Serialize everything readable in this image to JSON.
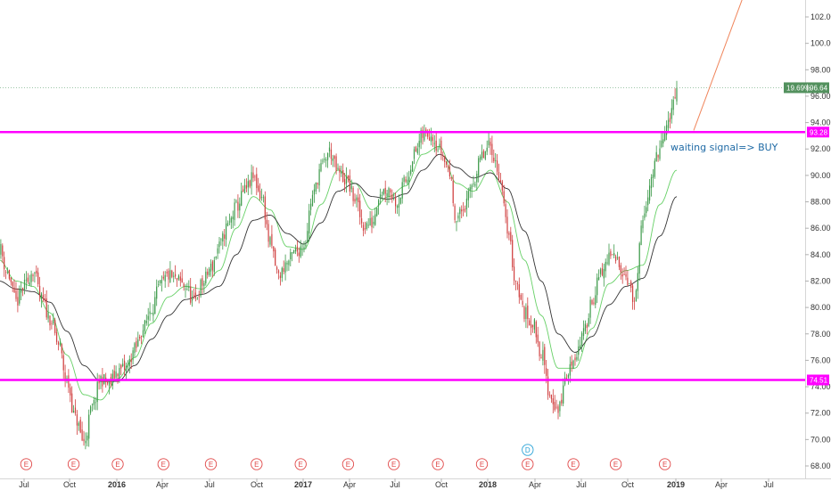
{
  "chart_data": {
    "type": "candlestick",
    "ylim": [
      67.2,
      104.0
    ],
    "y_ticks": [
      "68.00",
      "70.00",
      "72.00",
      "74.00",
      "76.00",
      "78.00",
      "80.00",
      "82.00",
      "84.00",
      "86.00",
      "88.00",
      "90.00",
      "92.00",
      "94.00",
      "96.00",
      "98.00",
      "100.00",
      "102.00"
    ],
    "x_ticks": [
      "Jul",
      "Oct",
      "2016",
      "Apr",
      "Jul",
      "Oct",
      "2017",
      "Apr",
      "Jul",
      "Oct",
      "2018",
      "Apr",
      "Jul",
      "Oct",
      "2019",
      "Apr",
      "Jul"
    ],
    "x_tick_is_year": [
      false,
      false,
      true,
      false,
      false,
      false,
      true,
      false,
      false,
      false,
      true,
      false,
      false,
      false,
      true,
      false,
      false
    ],
    "close_anchors": [
      [
        0,
        84.6
      ],
      [
        5,
        82.6
      ],
      [
        10,
        80.4
      ],
      [
        15,
        81.6
      ],
      [
        20,
        82.8
      ],
      [
        25,
        80.6
      ],
      [
        30,
        79.2
      ],
      [
        35,
        77.2
      ],
      [
        40,
        74.4
      ],
      [
        45,
        71.6
      ],
      [
        50,
        69.8
      ],
      [
        55,
        72.4
      ],
      [
        60,
        74.6
      ],
      [
        65,
        74.2
      ],
      [
        70,
        75.2
      ],
      [
        75,
        75.4
      ],
      [
        80,
        76.8
      ],
      [
        85,
        78.4
      ],
      [
        90,
        80.0
      ],
      [
        95,
        81.6
      ],
      [
        100,
        82.4
      ],
      [
        105,
        82.0
      ],
      [
        110,
        81.6
      ],
      [
        115,
        80.4
      ],
      [
        120,
        81.8
      ],
      [
        125,
        83.0
      ],
      [
        130,
        84.6
      ],
      [
        135,
        86.2
      ],
      [
        140,
        87.6
      ],
      [
        145,
        88.8
      ],
      [
        150,
        89.8
      ],
      [
        155,
        88.4
      ],
      [
        160,
        84.8
      ],
      [
        165,
        82.4
      ],
      [
        170,
        83.4
      ],
      [
        175,
        84.2
      ],
      [
        180,
        84.8
      ],
      [
        185,
        88.4
      ],
      [
        190,
        90.6
      ],
      [
        195,
        91.8
      ],
      [
        200,
        90.2
      ],
      [
        205,
        89.6
      ],
      [
        210,
        88.2
      ],
      [
        215,
        86.2
      ],
      [
        220,
        86.4
      ],
      [
        225,
        88.8
      ],
      [
        230,
        89.0
      ],
      [
        235,
        88.0
      ],
      [
        240,
        89.6
      ],
      [
        245,
        91.6
      ],
      [
        250,
        93.0
      ],
      [
        255,
        93.2
      ],
      [
        260,
        92.0
      ],
      [
        265,
        90.6
      ],
      [
        270,
        86.8
      ],
      [
        275,
        87.6
      ],
      [
        280,
        89.6
      ],
      [
        285,
        91.4
      ],
      [
        290,
        92.2
      ],
      [
        295,
        90.2
      ],
      [
        300,
        86.0
      ],
      [
        305,
        82.0
      ],
      [
        310,
        79.6
      ],
      [
        315,
        78.8
      ],
      [
        320,
        76.6
      ],
      [
        325,
        73.4
      ],
      [
        330,
        72.2
      ],
      [
        335,
        74.8
      ],
      [
        340,
        76.4
      ],
      [
        345,
        78.0
      ],
      [
        350,
        80.6
      ],
      [
        355,
        82.4
      ],
      [
        360,
        83.8
      ],
      [
        365,
        83.6
      ],
      [
        370,
        82.4
      ],
      [
        375,
        80.4
      ],
      [
        380,
        86.4
      ],
      [
        385,
        90.0
      ],
      [
        390,
        92.0
      ],
      [
        395,
        93.8
      ],
      [
        400,
        96.64
      ]
    ],
    "sma_fast_anchors": [
      [
        0,
        83.6
      ],
      [
        10,
        82.0
      ],
      [
        20,
        81.6
      ],
      [
        30,
        79.6
      ],
      [
        40,
        76.4
      ],
      [
        50,
        73.4
      ],
      [
        60,
        73.0
      ],
      [
        70,
        74.6
      ],
      [
        80,
        76.2
      ],
      [
        90,
        78.8
      ],
      [
        100,
        80.8
      ],
      [
        110,
        81.6
      ],
      [
        120,
        81.4
      ],
      [
        130,
        82.8
      ],
      [
        140,
        86.0
      ],
      [
        150,
        88.4
      ],
      [
        160,
        87.4
      ],
      [
        170,
        84.6
      ],
      [
        180,
        84.4
      ],
      [
        190,
        87.8
      ],
      [
        200,
        90.4
      ],
      [
        210,
        89.4
      ],
      [
        220,
        87.4
      ],
      [
        230,
        88.4
      ],
      [
        240,
        89.2
      ],
      [
        250,
        91.6
      ],
      [
        260,
        92.2
      ],
      [
        270,
        89.4
      ],
      [
        280,
        88.8
      ],
      [
        290,
        90.4
      ],
      [
        300,
        88.0
      ],
      [
        310,
        83.6
      ],
      [
        320,
        79.4
      ],
      [
        330,
        75.4
      ],
      [
        340,
        75.4
      ],
      [
        350,
        78.4
      ],
      [
        360,
        81.8
      ],
      [
        370,
        82.8
      ],
      [
        380,
        83.2
      ],
      [
        390,
        87.8
      ],
      [
        400,
        90.4
      ]
    ],
    "sma_slow_anchors": [
      [
        0,
        82.0
      ],
      [
        10,
        81.4
      ],
      [
        20,
        81.2
      ],
      [
        30,
        80.4
      ],
      [
        40,
        78.2
      ],
      [
        50,
        75.6
      ],
      [
        60,
        74.4
      ],
      [
        70,
        74.4
      ],
      [
        80,
        75.6
      ],
      [
        90,
        77.6
      ],
      [
        100,
        79.4
      ],
      [
        110,
        80.6
      ],
      [
        120,
        81.0
      ],
      [
        130,
        81.6
      ],
      [
        140,
        84.0
      ],
      [
        150,
        86.6
      ],
      [
        160,
        87.0
      ],
      [
        170,
        85.6
      ],
      [
        180,
        84.8
      ],
      [
        190,
        86.4
      ],
      [
        200,
        88.8
      ],
      [
        210,
        89.4
      ],
      [
        220,
        88.4
      ],
      [
        230,
        88.2
      ],
      [
        240,
        88.6
      ],
      [
        250,
        90.4
      ],
      [
        260,
        91.6
      ],
      [
        270,
        90.6
      ],
      [
        280,
        89.8
      ],
      [
        290,
        90.2
      ],
      [
        300,
        89.0
      ],
      [
        310,
        85.8
      ],
      [
        320,
        82.0
      ],
      [
        330,
        78.0
      ],
      [
        340,
        76.6
      ],
      [
        350,
        77.8
      ],
      [
        360,
        80.2
      ],
      [
        370,
        81.6
      ],
      [
        380,
        82.2
      ],
      [
        390,
        85.4
      ],
      [
        400,
        88.4
      ]
    ],
    "horizontal_levels": [
      {
        "value": 93.28,
        "label": "93.28"
      },
      {
        "value": 74.51,
        "label": "74.51"
      }
    ],
    "last_price": {
      "value": 96.64,
      "label": "96.64",
      "change": "19.69%"
    },
    "annotation": "waiting signal=> BUY",
    "arrow": {
      "from": {
        "bar": 410,
        "value": 93.4
      },
      "to": {
        "bar": 440,
        "value": 103.8
      }
    },
    "events": [
      {
        "bar": 16,
        "marks": [
          "E"
        ]
      },
      {
        "bar": 44,
        "marks": [
          "E"
        ]
      },
      {
        "bar": 70,
        "marks": [
          "E"
        ]
      },
      {
        "bar": 97,
        "marks": [
          "E"
        ]
      },
      {
        "bar": 125,
        "marks": [
          "E"
        ]
      },
      {
        "bar": 152,
        "marks": [
          "E"
        ]
      },
      {
        "bar": 178,
        "marks": [
          "E"
        ]
      },
      {
        "bar": 206,
        "marks": [
          "E"
        ]
      },
      {
        "bar": 233,
        "marks": [
          "E"
        ]
      },
      {
        "bar": 259,
        "marks": [
          "E"
        ]
      },
      {
        "bar": 285,
        "marks": [
          "E"
        ]
      },
      {
        "bar": 312,
        "marks": [
          "E",
          "D"
        ]
      },
      {
        "bar": 339,
        "marks": [
          "E"
        ]
      },
      {
        "bar": 364,
        "marks": [
          "E"
        ]
      },
      {
        "bar": 393,
        "marks": [
          "E"
        ]
      }
    ]
  },
  "colors": {
    "up": "#3c9a4a",
    "down": "#d04040",
    "sma_fast": "#66d066",
    "sma_slow": "#333333",
    "level": "#ff00ff",
    "last_price": "#53915e",
    "arrow": "#f0845a",
    "event_e": "#e04848",
    "event_d": "#26a1d6",
    "grid_line": "#8fbf9c"
  }
}
